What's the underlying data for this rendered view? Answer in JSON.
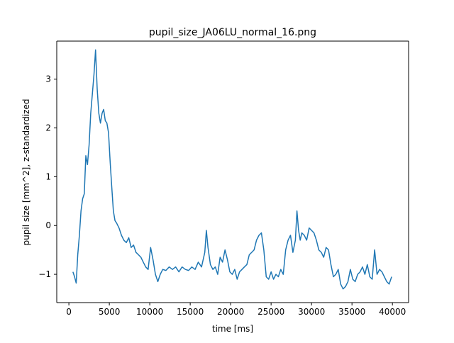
{
  "chart_data": {
    "type": "line",
    "title": "pupil_size_JA06LU_normal_16.png",
    "xlabel": "time [ms]",
    "ylabel": "pupil size [mm^2], z-standardized",
    "xlim": [
      -1500,
      42000
    ],
    "ylim": [
      -1.58,
      3.78
    ],
    "xticks": [
      0,
      5000,
      10000,
      15000,
      20000,
      25000,
      30000,
      35000,
      40000
    ],
    "xtick_labels": [
      "0",
      "5000",
      "10000",
      "15000",
      "20000",
      "25000",
      "30000",
      "35000",
      "40000"
    ],
    "yticks": [
      -1,
      0,
      1,
      2,
      3
    ],
    "ytick_labels": [
      "−1",
      "0",
      "1",
      "2",
      "3"
    ],
    "grid": false,
    "line_color": "#1f77b4",
    "series": [
      {
        "x": [
          500,
          700,
          900,
          1100,
          1300,
          1500,
          1700,
          1900,
          2100,
          2300,
          2500,
          2700,
          2900,
          3100,
          3300,
          3500,
          3700,
          3900,
          4100,
          4300,
          4500,
          4700,
          4900,
          5100,
          5300,
          5500,
          5700,
          5900,
          6200,
          6500,
          6800,
          7100,
          7400,
          7700,
          8000,
          8300,
          8600,
          8900,
          9200,
          9500,
          9800,
          10100,
          10400,
          10700,
          11000,
          11300,
          11600,
          12000,
          12400,
          12800,
          13200,
          13600,
          14000,
          14400,
          14800,
          15200,
          15600,
          16000,
          16400,
          16800,
          17000,
          17200,
          17500,
          17800,
          18100,
          18400,
          18700,
          19000,
          19300,
          19600,
          19900,
          20200,
          20500,
          20800,
          21100,
          21400,
          21700,
          22000,
          22300,
          22600,
          22900,
          23200,
          23500,
          23800,
          24100,
          24400,
          24700,
          25000,
          25300,
          25600,
          25900,
          26200,
          26500,
          26800,
          27100,
          27400,
          27700,
          28000,
          28200,
          28400,
          28600,
          28800,
          29100,
          29400,
          29700,
          30000,
          30300,
          30600,
          30900,
          31200,
          31500,
          31800,
          32100,
          32400,
          32700,
          33000,
          33300,
          33600,
          33900,
          34200,
          34500,
          34800,
          35100,
          35400,
          35700,
          36000,
          36300,
          36600,
          36900,
          37200,
          37500,
          37800,
          38100,
          38400,
          38700,
          39000,
          39300,
          39600,
          39900
        ],
        "y": [
          -0.95,
          -1.05,
          -1.18,
          -0.6,
          -0.2,
          0.3,
          0.55,
          0.65,
          1.43,
          1.25,
          1.65,
          2.3,
          2.7,
          3.1,
          3.6,
          2.8,
          2.3,
          2.1,
          2.3,
          2.38,
          2.15,
          2.1,
          1.9,
          1.3,
          0.8,
          0.3,
          0.1,
          0.05,
          -0.05,
          -0.2,
          -0.3,
          -0.35,
          -0.25,
          -0.45,
          -0.4,
          -0.55,
          -0.6,
          -0.65,
          -0.75,
          -0.85,
          -0.9,
          -0.45,
          -0.7,
          -1.0,
          -1.15,
          -1.0,
          -0.9,
          -0.92,
          -0.85,
          -0.9,
          -0.85,
          -0.95,
          -0.85,
          -0.9,
          -0.92,
          -0.85,
          -0.9,
          -0.75,
          -0.85,
          -0.55,
          -0.1,
          -0.45,
          -0.8,
          -0.9,
          -0.85,
          -1.0,
          -0.65,
          -0.75,
          -0.5,
          -0.7,
          -0.95,
          -1.0,
          -0.9,
          -1.1,
          -0.95,
          -0.9,
          -0.85,
          -0.8,
          -0.6,
          -0.55,
          -0.5,
          -0.3,
          -0.2,
          -0.15,
          -0.5,
          -1.05,
          -1.1,
          -0.95,
          -1.1,
          -1.0,
          -1.05,
          -0.9,
          -1.0,
          -0.5,
          -0.3,
          -0.2,
          -0.55,
          -0.3,
          0.3,
          -0.1,
          -0.3,
          -0.15,
          -0.2,
          -0.3,
          -0.05,
          -0.1,
          -0.15,
          -0.3,
          -0.5,
          -0.55,
          -0.65,
          -0.45,
          -0.5,
          -0.8,
          -1.05,
          -1.0,
          -0.9,
          -1.2,
          -1.3,
          -1.25,
          -1.15,
          -0.9,
          -1.1,
          -1.15,
          -1.0,
          -0.95,
          -0.85,
          -1.0,
          -0.8,
          -1.05,
          -1.1,
          -0.5,
          -1.0,
          -0.9,
          -0.95,
          -1.05,
          -1.15,
          -1.2,
          -1.05
        ]
      }
    ]
  }
}
